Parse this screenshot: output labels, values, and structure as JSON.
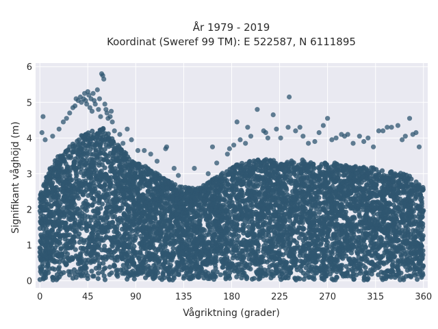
{
  "chart_data": {
    "type": "scatter",
    "title_line1": "År 1979 - 2019",
    "title_line2": "Koordinat (Sweref 99 TM): E 522587, N 6111895",
    "xlabel": "Vågriktning (grader)",
    "ylabel": "Signifikant våghöjd (m)",
    "xlim": [
      -4,
      364
    ],
    "ylim": [
      -0.2,
      6.1
    ],
    "xticks": [
      0,
      45,
      90,
      135,
      180,
      225,
      270,
      315,
      360
    ],
    "yticks": [
      0,
      1,
      2,
      3,
      4,
      5,
      6
    ],
    "grid": true,
    "marker_color": "#2f5670",
    "background_color": "#e9e9f1",
    "envelope": {
      "x": [
        0,
        10,
        20,
        30,
        40,
        50,
        60,
        70,
        80,
        90,
        100,
        110,
        120,
        130,
        140,
        150,
        160,
        170,
        180,
        190,
        200,
        210,
        220,
        230,
        240,
        250,
        260,
        270,
        280,
        290,
        300,
        310,
        320,
        330,
        340,
        350,
        360
      ],
      "y": [
        2.4,
        3.2,
        3.6,
        3.8,
        4.1,
        4.2,
        4.3,
        3.9,
        3.6,
        3.3,
        3.2,
        3.0,
        2.8,
        2.7,
        2.6,
        2.6,
        2.8,
        3.0,
        3.2,
        3.3,
        3.4,
        3.4,
        3.4,
        3.3,
        3.4,
        3.4,
        3.3,
        3.3,
        3.3,
        3.2,
        3.2,
        3.2,
        3.1,
        3.1,
        3.0,
        2.9,
        2.6
      ]
    },
    "outliers": [
      {
        "x": 3,
        "y": 4.6
      },
      {
        "x": 2,
        "y": 4.15
      },
      {
        "x": 5,
        "y": 3.95
      },
      {
        "x": 12,
        "y": 4.05
      },
      {
        "x": 18,
        "y": 4.25
      },
      {
        "x": 22,
        "y": 4.45
      },
      {
        "x": 25,
        "y": 4.55
      },
      {
        "x": 28,
        "y": 4.7
      },
      {
        "x": 31,
        "y": 4.85
      },
      {
        "x": 33,
        "y": 4.9
      },
      {
        "x": 34,
        "y": 5.1
      },
      {
        "x": 36,
        "y": 5.05
      },
      {
        "x": 38,
        "y": 5.15
      },
      {
        "x": 39,
        "y": 5.0
      },
      {
        "x": 41,
        "y": 5.1
      },
      {
        "x": 42,
        "y": 5.25
      },
      {
        "x": 43,
        "y": 5.05
      },
      {
        "x": 44,
        "y": 4.95
      },
      {
        "x": 45,
        "y": 5.3
      },
      {
        "x": 46,
        "y": 5.2
      },
      {
        "x": 47,
        "y": 4.85
      },
      {
        "x": 48,
        "y": 5.1
      },
      {
        "x": 49,
        "y": 4.75
      },
      {
        "x": 50,
        "y": 5.25
      },
      {
        "x": 51,
        "y": 5.05
      },
      {
        "x": 52,
        "y": 4.95
      },
      {
        "x": 54,
        "y": 5.35
      },
      {
        "x": 55,
        "y": 4.8
      },
      {
        "x": 56,
        "y": 5.1
      },
      {
        "x": 57,
        "y": 4.6
      },
      {
        "x": 58,
        "y": 5.8
      },
      {
        "x": 59,
        "y": 5.75
      },
      {
        "x": 60,
        "y": 5.65
      },
      {
        "x": 61,
        "y": 4.95
      },
      {
        "x": 62,
        "y": 4.8
      },
      {
        "x": 63,
        "y": 4.7
      },
      {
        "x": 64,
        "y": 4.55
      },
      {
        "x": 66,
        "y": 4.6
      },
      {
        "x": 67,
        "y": 4.75
      },
      {
        "x": 68,
        "y": 4.45
      },
      {
        "x": 70,
        "y": 4.2
      },
      {
        "x": 75,
        "y": 4.1
      },
      {
        "x": 78,
        "y": 3.85
      },
      {
        "x": 82,
        "y": 4.25
      },
      {
        "x": 86,
        "y": 3.95
      },
      {
        "x": 92,
        "y": 3.65
      },
      {
        "x": 98,
        "y": 3.65
      },
      {
        "x": 104,
        "y": 3.55
      },
      {
        "x": 110,
        "y": 3.35
      },
      {
        "x": 118,
        "y": 3.7
      },
      {
        "x": 119,
        "y": 3.75
      },
      {
        "x": 126,
        "y": 3.15
      },
      {
        "x": 130,
        "y": 2.95
      },
      {
        "x": 145,
        "y": 3.15
      },
      {
        "x": 158,
        "y": 3.0
      },
      {
        "x": 162,
        "y": 3.75
      },
      {
        "x": 166,
        "y": 3.3
      },
      {
        "x": 176,
        "y": 3.55
      },
      {
        "x": 178,
        "y": 3.7
      },
      {
        "x": 182,
        "y": 3.8
      },
      {
        "x": 185,
        "y": 4.45
      },
      {
        "x": 188,
        "y": 3.95
      },
      {
        "x": 193,
        "y": 3.85
      },
      {
        "x": 195,
        "y": 4.3
      },
      {
        "x": 198,
        "y": 4.05
      },
      {
        "x": 204,
        "y": 4.8
      },
      {
        "x": 210,
        "y": 4.2
      },
      {
        "x": 212,
        "y": 4.15
      },
      {
        "x": 214,
        "y": 4.0
      },
      {
        "x": 219,
        "y": 4.65
      },
      {
        "x": 222,
        "y": 4.25
      },
      {
        "x": 226,
        "y": 4.0
      },
      {
        "x": 233,
        "y": 4.3
      },
      {
        "x": 234,
        "y": 5.15
      },
      {
        "x": 240,
        "y": 4.2
      },
      {
        "x": 244,
        "y": 4.3
      },
      {
        "x": 247,
        "y": 4.05
      },
      {
        "x": 252,
        "y": 3.85
      },
      {
        "x": 258,
        "y": 3.9
      },
      {
        "x": 262,
        "y": 4.15
      },
      {
        "x": 266,
        "y": 4.35
      },
      {
        "x": 270,
        "y": 4.55
      },
      {
        "x": 274,
        "y": 3.95
      },
      {
        "x": 278,
        "y": 4.0
      },
      {
        "x": 283,
        "y": 4.1
      },
      {
        "x": 286,
        "y": 4.05
      },
      {
        "x": 289,
        "y": 4.1
      },
      {
        "x": 294,
        "y": 3.85
      },
      {
        "x": 300,
        "y": 4.05
      },
      {
        "x": 304,
        "y": 3.9
      },
      {
        "x": 308,
        "y": 4.0
      },
      {
        "x": 313,
        "y": 3.75
      },
      {
        "x": 318,
        "y": 4.2
      },
      {
        "x": 322,
        "y": 4.2
      },
      {
        "x": 326,
        "y": 4.3
      },
      {
        "x": 330,
        "y": 4.3
      },
      {
        "x": 336,
        "y": 4.35
      },
      {
        "x": 340,
        "y": 3.95
      },
      {
        "x": 343,
        "y": 4.05
      },
      {
        "x": 347,
        "y": 4.55
      },
      {
        "x": 350,
        "y": 4.1
      },
      {
        "x": 353,
        "y": 4.15
      },
      {
        "x": 356,
        "y": 3.75
      }
    ]
  }
}
